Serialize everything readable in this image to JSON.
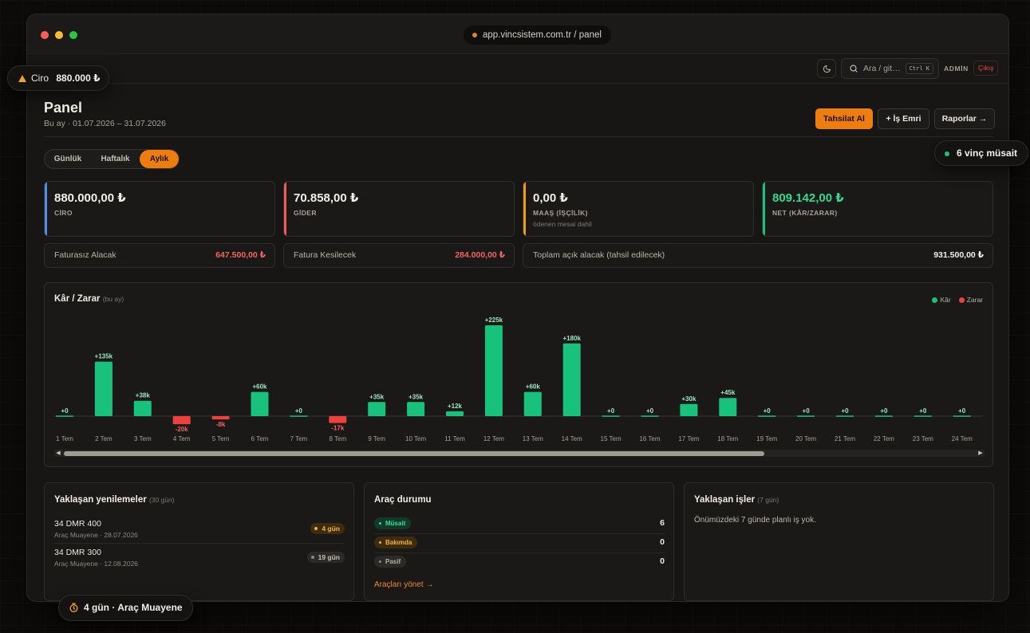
{
  "browser": {
    "url": "app.vincsistem.com.tr / panel"
  },
  "topbar": {
    "search_placeholder": "Ara / git…",
    "shortcut": "Ctrl K",
    "user": "ADMİN",
    "logout": "Çıkış"
  },
  "page": {
    "title": "Panel",
    "subtitle": "Bu ay · 01.07.2026 – 31.07.2026",
    "actions": {
      "collect": "Tahsilat Al",
      "work_order": "+ İş Emri",
      "reports": "Raporlar →"
    }
  },
  "period_tabs": [
    "Günlük",
    "Haftalık",
    "Aylık"
  ],
  "active_period": "Aylık",
  "kpis": [
    {
      "value": "880.000,00 ₺",
      "label": "CİRO",
      "note": "",
      "accent": "#4f8fea",
      "value_color": "#f3efe8"
    },
    {
      "value": "70.858,00 ₺",
      "label": "GİDER",
      "note": "",
      "accent": "#ef5a5a",
      "value_color": "#f3efe8"
    },
    {
      "value": "0,00 ₺",
      "label": "MAAŞ (İŞÇİLİK)",
      "note": "ödenen mesai dahil",
      "accent": "#ee9d10",
      "value_color": "#f3efe8"
    },
    {
      "value": "809.142,00 ₺",
      "label": "NET (KÂR/ZARAR)",
      "note": "",
      "accent": "#19c27c",
      "value_color": "#35d892"
    }
  ],
  "receivables": [
    {
      "label": "Faturasız Alacak",
      "value": "647.500,00 ₺",
      "color": "#f06565"
    },
    {
      "label": "Fatura Kesilecek",
      "value": "284.000,00 ₺",
      "color": "#f06565"
    },
    {
      "label": "Toplam açık alacak (tahsil edilecek)",
      "value": "931.500,00 ₺",
      "color": "#f3efe8"
    }
  ],
  "chart": {
    "title": "Kâr / Zarar",
    "subtitle": "(bu ay)",
    "legend": [
      {
        "label": "Kâr",
        "color": "#19c27c"
      },
      {
        "label": "Zarar",
        "color": "#ef4040"
      }
    ]
  },
  "chart_data": {
    "type": "bar",
    "title": "Kâr / Zarar",
    "categories": [
      "1 Tem",
      "2 Tem",
      "3 Tem",
      "4 Tem",
      "5 Tem",
      "6 Tem",
      "7 Tem",
      "8 Tem",
      "9 Tem",
      "10 Tem",
      "11 Tem",
      "12 Tem",
      "13 Tem",
      "14 Tem",
      "15 Tem",
      "16 Tem",
      "17 Tem",
      "18 Tem",
      "19 Tem",
      "20 Tem",
      "21 Tem",
      "22 Tem",
      "23 Tem",
      "24 Tem"
    ],
    "values": [
      0,
      135000,
      38000,
      -20000,
      -8000,
      60000,
      0,
      -17000,
      35000,
      35000,
      12000,
      225000,
      60000,
      180000,
      0,
      0,
      30000,
      45000,
      0,
      0,
      0,
      0,
      0,
      0
    ],
    "labels": [
      "+0",
      "+135k",
      "+38k",
      "-20k",
      "-8k",
      "+60k",
      "+0",
      "-17k",
      "+35k",
      "+35k",
      "+12k",
      "+225k",
      "+60k",
      "+180k",
      "+0",
      "+0",
      "+30k",
      "+45k",
      "+0",
      "+0",
      "+0",
      "+0",
      "+0",
      "+0"
    ],
    "legend_position": "top-right",
    "grid": false,
    "colors": {
      "profit": "#19c27c",
      "loss": "#ef4040"
    }
  },
  "renewals": {
    "title": "Yaklaşan yenilemeler",
    "subtitle": "(30 gün)",
    "items": [
      {
        "plate": "34 DMR 400",
        "detail": "Araç Muayene · 28.07.2026",
        "badge": "4 gün",
        "tone": "warn"
      },
      {
        "plate": "34 DMR 300",
        "detail": "Araç Muayene · 12.08.2026",
        "badge": "19 gün",
        "tone": "neutral"
      }
    ]
  },
  "vehicle_status": {
    "title": "Araç durumu",
    "items": [
      {
        "label": "Müsait",
        "count": "6",
        "bg": "#123a29",
        "fg": "#3ddc97"
      },
      {
        "label": "Bakımda",
        "count": "0",
        "bg": "#3d2d0c",
        "fg": "#f2b43a"
      },
      {
        "label": "Pasif",
        "count": "0",
        "bg": "#2c2a27",
        "fg": "#b7b1a6"
      }
    ],
    "link": "Araçları yönet →"
  },
  "upcoming_jobs": {
    "title": "Yaklaşan işler",
    "subtitle": "(7 gün)",
    "empty": "Önümüzdeki 7 günde planlı iş yok."
  },
  "toasts": {
    "revenue_label": "Ciro",
    "revenue_value": "880.000 ₺",
    "available": "6 vinç müsait",
    "due": "4 gün · Araç Muayene"
  }
}
